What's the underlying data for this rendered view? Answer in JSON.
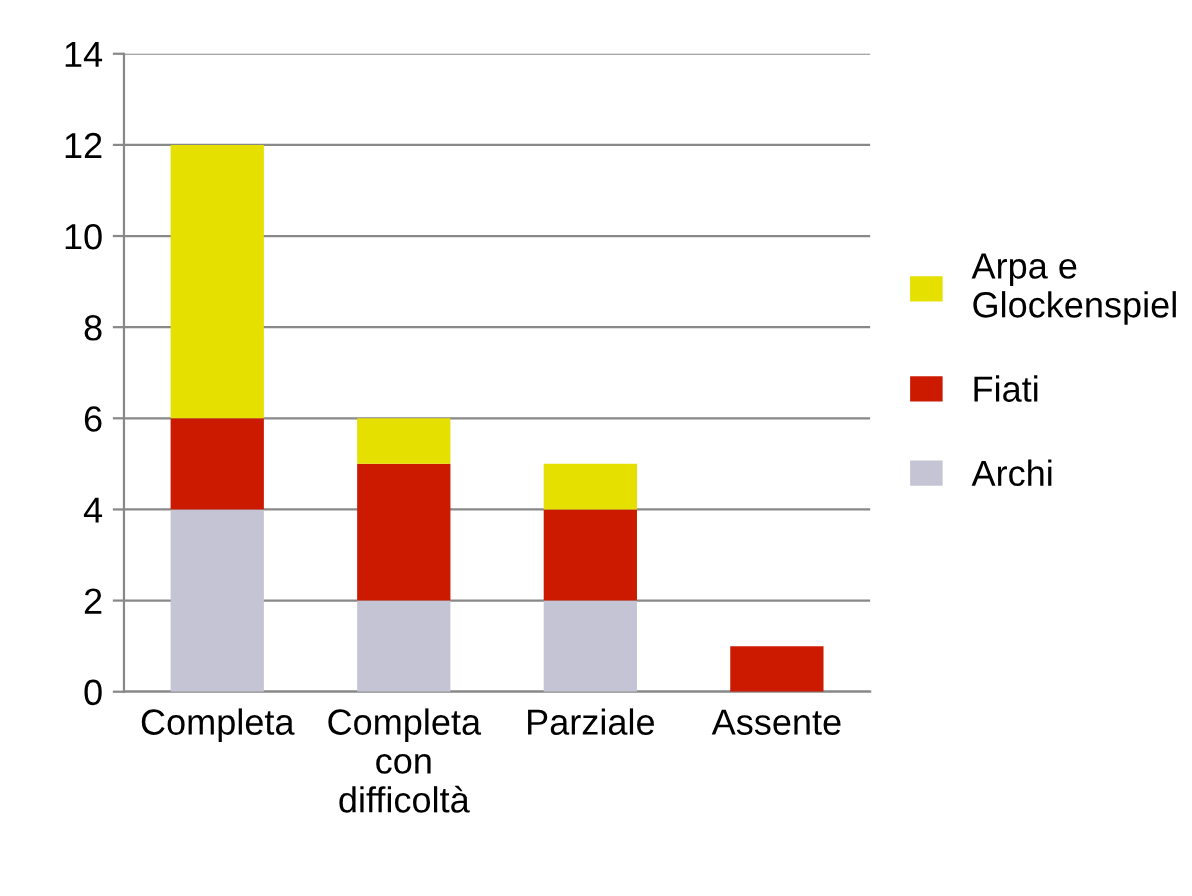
{
  "chart_data": {
    "type": "bar",
    "stacked": true,
    "categories": [
      "Completa",
      "Completa con difficoltà",
      "Parziale",
      "Assente"
    ],
    "series": [
      {
        "name": "Archi",
        "color": "#c4c4d4",
        "values": [
          4,
          2,
          2,
          0
        ]
      },
      {
        "name": "Fiati",
        "color": "#cc1a00",
        "values": [
          2,
          3,
          2,
          1
        ]
      },
      {
        "name": "Arpa e Glockenspiel",
        "color": "#e6e000",
        "values": [
          6,
          1,
          1,
          0
        ]
      }
    ],
    "ylim": [
      0,
      14
    ],
    "yticks": [
      0,
      2,
      4,
      6,
      8,
      10,
      12,
      14
    ],
    "grid": "y",
    "legend": "right"
  }
}
